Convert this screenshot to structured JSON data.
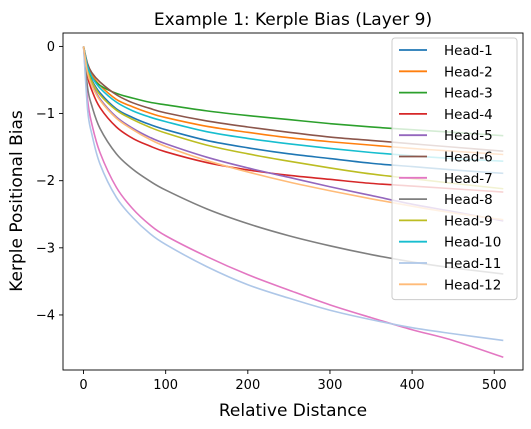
{
  "chart_data": {
    "type": "line",
    "title": "Example 1: Kerple Bias (Layer 9)",
    "xlabel": "Relative Distance",
    "ylabel": "Kerple Positional Bias",
    "xlim": [
      -25,
      535
    ],
    "ylim": [
      -4.82,
      0.2
    ],
    "xticks": [
      0,
      100,
      200,
      300,
      400,
      500
    ],
    "yticks": [
      0,
      -1,
      -2,
      -3,
      -4
    ],
    "ytick_labels": [
      "0",
      "−1",
      "−2",
      "−3",
      "−4"
    ],
    "grid": false,
    "legend_position": "top-right",
    "x": [
      0,
      5,
      10,
      20,
      40,
      60,
      80,
      100,
      150,
      200,
      250,
      300,
      350,
      400,
      450,
      511
    ],
    "series": [
      {
        "name": "Head-1",
        "color": "#1f77b4",
        "values": [
          0,
          -0.34,
          -0.5,
          -0.69,
          -0.93,
          -1.06,
          -1.16,
          -1.24,
          -1.4,
          -1.51,
          -1.6,
          -1.67,
          -1.74,
          -1.79,
          -1.84,
          -1.89
        ]
      },
      {
        "name": "Head-2",
        "color": "#ff7f0e",
        "values": [
          0,
          -0.29,
          -0.42,
          -0.58,
          -0.79,
          -0.9,
          -0.99,
          -1.06,
          -1.19,
          -1.28,
          -1.36,
          -1.42,
          -1.47,
          -1.52,
          -1.56,
          -1.61
        ]
      },
      {
        "name": "Head-3",
        "color": "#2ca02c",
        "values": [
          0,
          -0.35,
          -0.46,
          -0.58,
          -0.7,
          -0.77,
          -0.83,
          -0.87,
          -0.96,
          -1.03,
          -1.09,
          -1.15,
          -1.2,
          -1.24,
          -1.28,
          -1.33
        ]
      },
      {
        "name": "Head-4",
        "color": "#d62728",
        "values": [
          0,
          -0.45,
          -0.65,
          -0.91,
          -1.2,
          -1.37,
          -1.48,
          -1.57,
          -1.73,
          -1.84,
          -1.92,
          -1.98,
          -2.04,
          -2.08,
          -2.12,
          -2.17
        ]
      },
      {
        "name": "Head-5",
        "color": "#9467bd",
        "values": [
          0,
          -0.38,
          -0.55,
          -0.78,
          -1.05,
          -1.22,
          -1.35,
          -1.45,
          -1.65,
          -1.81,
          -1.95,
          -2.09,
          -2.22,
          -2.35,
          -2.46,
          -2.6
        ]
      },
      {
        "name": "Head-6",
        "color": "#8c564b",
        "values": [
          0,
          -0.26,
          -0.39,
          -0.53,
          -0.72,
          -0.84,
          -0.92,
          -0.99,
          -1.11,
          -1.2,
          -1.28,
          -1.35,
          -1.4,
          -1.45,
          -1.5,
          -1.56
        ]
      },
      {
        "name": "Head-7",
        "color": "#e377c2",
        "values": [
          0,
          -0.8,
          -1.15,
          -1.58,
          -2.1,
          -2.42,
          -2.65,
          -2.82,
          -3.13,
          -3.4,
          -3.63,
          -3.85,
          -4.04,
          -4.22,
          -4.38,
          -4.63
        ]
      },
      {
        "name": "Head-8",
        "color": "#7f7f7f",
        "values": [
          0,
          -0.62,
          -0.88,
          -1.22,
          -1.6,
          -1.83,
          -2.0,
          -2.14,
          -2.42,
          -2.64,
          -2.82,
          -2.97,
          -3.1,
          -3.21,
          -3.3,
          -3.39
        ]
      },
      {
        "name": "Head-9",
        "color": "#bcbd22",
        "values": [
          0,
          -0.36,
          -0.52,
          -0.72,
          -0.95,
          -1.09,
          -1.2,
          -1.29,
          -1.47,
          -1.6,
          -1.71,
          -1.81,
          -1.9,
          -1.97,
          -2.04,
          -2.12
        ]
      },
      {
        "name": "Head-10",
        "color": "#17becf",
        "values": [
          0,
          -0.3,
          -0.45,
          -0.62,
          -0.83,
          -0.96,
          -1.05,
          -1.12,
          -1.27,
          -1.37,
          -1.45,
          -1.52,
          -1.58,
          -1.63,
          -1.67,
          -1.71
        ]
      },
      {
        "name": "Head-11",
        "color": "#aec7e8",
        "values": [
          0,
          -0.95,
          -1.3,
          -1.75,
          -2.25,
          -2.55,
          -2.78,
          -2.95,
          -3.28,
          -3.55,
          -3.75,
          -3.93,
          -4.07,
          -4.19,
          -4.28,
          -4.38
        ]
      },
      {
        "name": "Head-12",
        "color": "#ffbb78",
        "values": [
          0,
          -0.4,
          -0.58,
          -0.8,
          -1.07,
          -1.24,
          -1.38,
          -1.49,
          -1.7,
          -1.87,
          -2.02,
          -2.15,
          -2.27,
          -2.38,
          -2.48,
          -2.58
        ]
      }
    ]
  }
}
